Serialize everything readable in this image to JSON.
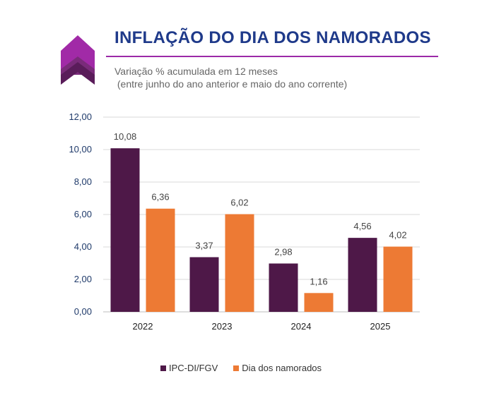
{
  "header": {
    "title": "INFLAÇÃO DO DIA DOS NAMORADOS",
    "subtitle_line1": "Variação % acumulada em 12 meses",
    "subtitle_line2": " (entre junho do ano anterior e maio do ano corrente)"
  },
  "colors": {
    "accent": "#9b2aa8",
    "title": "#1f3a8a"
  },
  "chart_data": {
    "type": "bar",
    "categories": [
      "2022",
      "2023",
      "2024",
      "2025"
    ],
    "series": [
      {
        "name": "IPC-DI/FGV",
        "color": "#4e1848",
        "values": [
          10.08,
          3.37,
          2.98,
          4.56
        ],
        "labels": [
          "10,08",
          "3,37",
          "2,98",
          "4,56"
        ]
      },
      {
        "name": "Dia dos namorados",
        "color": "#ed7a34",
        "values": [
          6.36,
          6.02,
          1.16,
          4.02
        ],
        "labels": [
          "6,36",
          "6,02",
          "1,16",
          "4,02"
        ]
      }
    ],
    "yticks": [
      "0,00",
      "2,00",
      "4,00",
      "6,00",
      "8,00",
      "10,00",
      "12,00"
    ],
    "ylim": [
      0,
      12
    ],
    "grid": true,
    "legend": "bottom"
  }
}
